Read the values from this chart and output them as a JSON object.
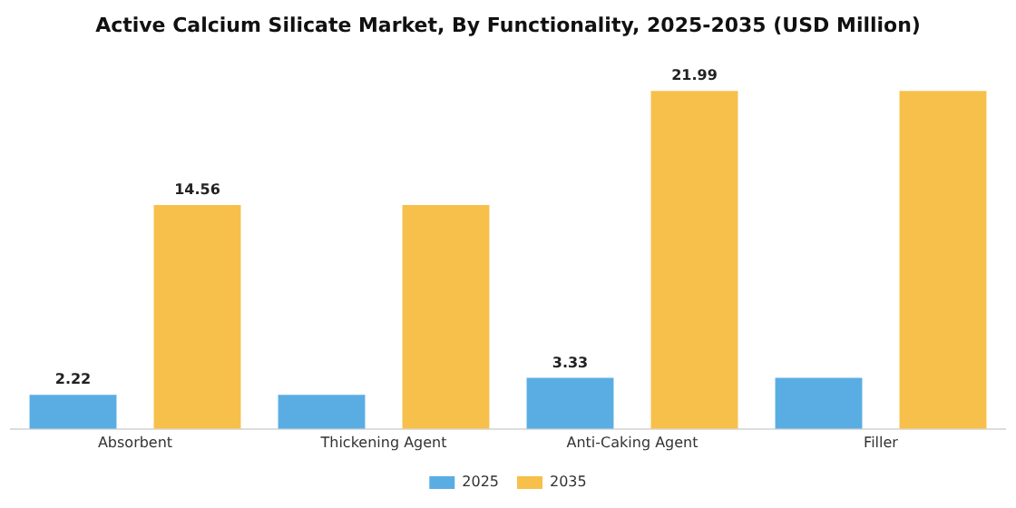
{
  "chart_data": {
    "type": "bar",
    "title": "Active Calcium Silicate Market, By Functionality, 2025-2035 (USD Million)",
    "categories": [
      "Absorbent",
      "Thickening Agent",
      "Anti-Caking Agent",
      "Filler"
    ],
    "series": [
      {
        "name": "2025",
        "color": "#5aade3",
        "values": [
          2.22,
          2.22,
          3.33,
          3.33
        ],
        "value_labels": [
          "2.22",
          null,
          "3.33",
          null
        ]
      },
      {
        "name": "2035",
        "color": "#f7c04a",
        "values": [
          14.56,
          14.56,
          21.99,
          21.99
        ],
        "value_labels": [
          "14.56",
          null,
          "21.99",
          null
        ]
      }
    ],
    "legend": "bottom",
    "grid": false
  }
}
